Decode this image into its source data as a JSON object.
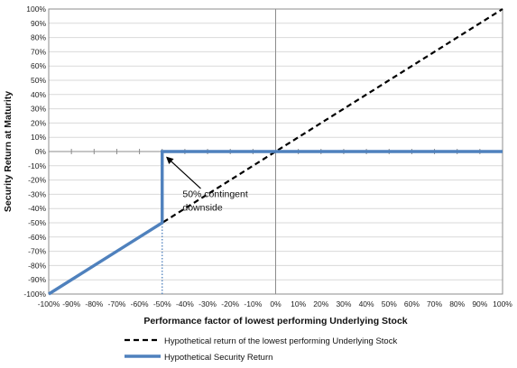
{
  "chart_data": {
    "type": "line",
    "title": "",
    "xlabel": "Performance factor of lowest performing Underlying Stock",
    "ylabel": "Security Return at Maturity",
    "xlim": [
      -100,
      100
    ],
    "ylim": [
      -100,
      100
    ],
    "x_ticks": [
      "-100%",
      "-90%",
      "-80%",
      "-70%",
      "-60%",
      "-50%",
      "-40%",
      "-30%",
      "-20%",
      "-10%",
      "0%",
      "10%",
      "20%",
      "30%",
      "40%",
      "50%",
      "60%",
      "70%",
      "80%",
      "90%",
      "100%"
    ],
    "y_ticks": [
      "100%",
      "90%",
      "80%",
      "70%",
      "60%",
      "50%",
      "40%",
      "30%",
      "20%",
      "10%",
      "0%",
      "-10%",
      "-20%",
      "-30%",
      "-40%",
      "-50%",
      "-60%",
      "-70%",
      "-80%",
      "-90%",
      "-100%"
    ],
    "grid": true,
    "legend_position": "bottom",
    "series": [
      {
        "name": "Hypothetical return of the lowest performing Underlying Stock",
        "style": "dashed",
        "color": "#000000",
        "points": [
          [
            -100,
            -100
          ],
          [
            100,
            100
          ]
        ]
      },
      {
        "name": "Hypothetical Security Return",
        "style": "solid",
        "color": "#4f81bd",
        "points": [
          [
            -100,
            -100
          ],
          [
            -50,
            -50
          ],
          [
            -50,
            0
          ],
          [
            100,
            0
          ]
        ]
      }
    ],
    "annotations": [
      {
        "text_lines": [
          "50% contingent",
          "downside"
        ],
        "arrow_to": [
          -50,
          0
        ]
      }
    ],
    "vline_marker": {
      "x": -50,
      "y_from": -100,
      "y_to": -50,
      "color": "#4f81bd",
      "style": "dotted"
    }
  }
}
